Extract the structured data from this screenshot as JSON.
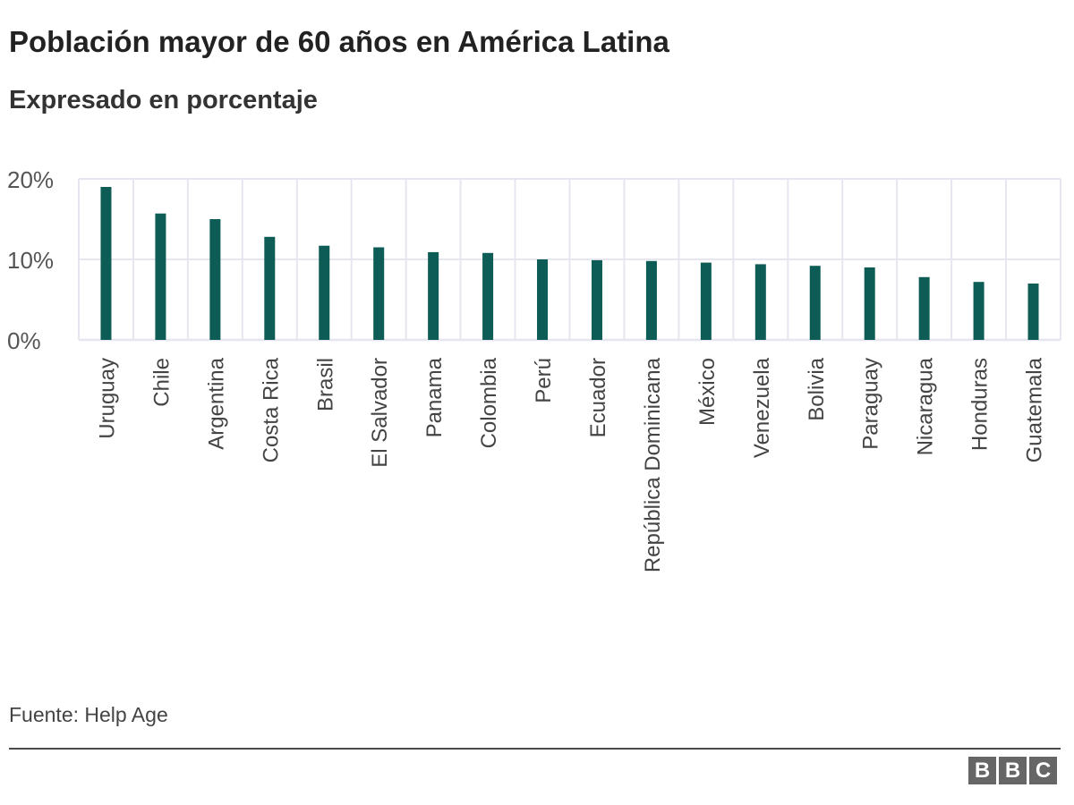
{
  "header": {
    "title": "Población mayor de 60 años en América Latina",
    "subtitle": "Expresado en porcentaje"
  },
  "footer": {
    "source": "Fuente: Help Age",
    "logo_letters": [
      "B",
      "B",
      "C"
    ]
  },
  "colors": {
    "bar": "#0d5c55",
    "grid": "#e6e6f0",
    "axis_text": "#555555",
    "label_text": "#444444"
  },
  "chart_data": {
    "type": "bar",
    "title": "Población mayor de 60 años en América Latina",
    "subtitle": "Expresado en porcentaje",
    "xlabel": "",
    "ylabel": "",
    "ylim": [
      0,
      20
    ],
    "yticks": [
      0,
      10,
      20
    ],
    "ytick_labels": [
      "0%",
      "10%",
      "20%"
    ],
    "grid": true,
    "categories": [
      "Uruguay",
      "Chile",
      "Argentina",
      "Costa Rica",
      "Brasil",
      "El Salvador",
      "Panama",
      "Colombia",
      "Perú",
      "Ecuador",
      "República Dominicana",
      "México",
      "Venezuela",
      "Bolivia",
      "Paraguay",
      "Nicaragua",
      "Honduras",
      "Guatemala"
    ],
    "values": [
      19.0,
      15.7,
      15.0,
      12.8,
      11.7,
      11.5,
      10.9,
      10.8,
      10.0,
      9.9,
      9.8,
      9.6,
      9.4,
      9.2,
      9.0,
      7.8,
      7.2,
      7.0
    ]
  }
}
